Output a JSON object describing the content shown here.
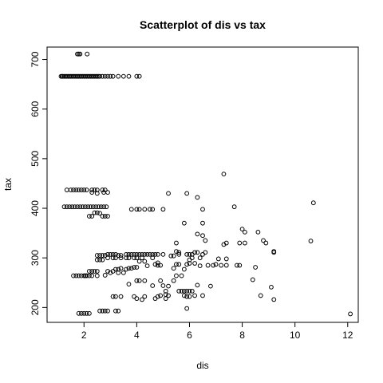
{
  "chart_data": {
    "type": "scatter",
    "title": "Scatterplot of dis vs tax",
    "xlabel": "dis",
    "ylabel": "tax",
    "xlim": [
      0.6,
      12.4
    ],
    "ylim": [
      170,
      725
    ],
    "xticks": [
      2,
      4,
      6,
      8,
      10,
      12
    ],
    "yticks": [
      200,
      300,
      400,
      500,
      600,
      700
    ],
    "xtick_labels": [
      "2",
      "4",
      "6",
      "8",
      "10",
      "12"
    ],
    "ytick_labels": [
      "200",
      "300",
      "400",
      "500",
      "600",
      "700"
    ],
    "grid": false,
    "legend": "none",
    "marker": "open-circle",
    "point_color": "#000000",
    "series": [
      {
        "points": [
          [
            1.13,
            666
          ],
          [
            1.17,
            666
          ],
          [
            1.2,
            666
          ],
          [
            1.25,
            666
          ],
          [
            1.3,
            666
          ],
          [
            1.35,
            666
          ],
          [
            1.4,
            666
          ],
          [
            1.45,
            666
          ],
          [
            1.5,
            666
          ],
          [
            1.55,
            666
          ],
          [
            1.6,
            666
          ],
          [
            1.65,
            666
          ],
          [
            1.7,
            666
          ],
          [
            1.75,
            666
          ],
          [
            1.8,
            666
          ],
          [
            1.85,
            666
          ],
          [
            1.9,
            666
          ],
          [
            1.95,
            666
          ],
          [
            2.0,
            666
          ],
          [
            2.05,
            666
          ],
          [
            2.1,
            666
          ],
          [
            2.15,
            666
          ],
          [
            2.2,
            666
          ],
          [
            2.25,
            666
          ],
          [
            2.3,
            666
          ],
          [
            2.35,
            666
          ],
          [
            2.4,
            666
          ],
          [
            2.45,
            666
          ],
          [
            2.5,
            666
          ],
          [
            2.55,
            666
          ],
          [
            2.6,
            666
          ],
          [
            2.7,
            666
          ],
          [
            2.8,
            666
          ],
          [
            2.9,
            666
          ],
          [
            3.0,
            666
          ],
          [
            3.1,
            666
          ],
          [
            3.3,
            666
          ],
          [
            3.5,
            666
          ],
          [
            3.7,
            666
          ],
          [
            4.0,
            666
          ],
          [
            4.1,
            666
          ],
          [
            1.75,
            711
          ],
          [
            1.8,
            711
          ],
          [
            1.85,
            711
          ],
          [
            2.12,
            711
          ],
          [
            1.35,
            437
          ],
          [
            1.5,
            437
          ],
          [
            1.6,
            437
          ],
          [
            1.7,
            437
          ],
          [
            1.8,
            437
          ],
          [
            1.9,
            437
          ],
          [
            2.0,
            437
          ],
          [
            2.1,
            437
          ],
          [
            2.3,
            437
          ],
          [
            2.4,
            437
          ],
          [
            2.5,
            437
          ],
          [
            2.7,
            437
          ],
          [
            2.8,
            437
          ],
          [
            2.3,
            432
          ],
          [
            2.5,
            430
          ],
          [
            2.75,
            432
          ],
          [
            2.9,
            432
          ],
          [
            1.25,
            403
          ],
          [
            1.35,
            403
          ],
          [
            1.45,
            403
          ],
          [
            1.55,
            403
          ],
          [
            1.65,
            403
          ],
          [
            1.75,
            403
          ],
          [
            1.85,
            403
          ],
          [
            1.95,
            403
          ],
          [
            2.05,
            403
          ],
          [
            2.15,
            403
          ],
          [
            2.25,
            403
          ],
          [
            2.35,
            403
          ],
          [
            2.45,
            403
          ],
          [
            2.55,
            403
          ],
          [
            2.65,
            403
          ],
          [
            2.75,
            403
          ],
          [
            2.85,
            403
          ],
          [
            2.4,
            391
          ],
          [
            2.5,
            391
          ],
          [
            2.6,
            390
          ],
          [
            2.2,
            384
          ],
          [
            2.3,
            384
          ],
          [
            2.7,
            384
          ],
          [
            2.8,
            384
          ],
          [
            2.9,
            384
          ],
          [
            3.8,
            398
          ],
          [
            4.0,
            398
          ],
          [
            4.1,
            398
          ],
          [
            4.3,
            398
          ],
          [
            4.5,
            398
          ],
          [
            4.6,
            398
          ],
          [
            5.0,
            398
          ],
          [
            5.2,
            430
          ],
          [
            5.9,
            430
          ],
          [
            6.3,
            422
          ],
          [
            6.5,
            398
          ],
          [
            6.5,
            370
          ],
          [
            5.8,
            370
          ],
          [
            6.3,
            348
          ],
          [
            6.5,
            345
          ],
          [
            6.6,
            335
          ],
          [
            7.3,
            469
          ],
          [
            7.7,
            403
          ],
          [
            8.0,
            358
          ],
          [
            8.1,
            352
          ],
          [
            8.6,
            352
          ],
          [
            8.8,
            335
          ],
          [
            8.9,
            330
          ],
          [
            7.9,
            330
          ],
          [
            8.1,
            330
          ],
          [
            7.3,
            327
          ],
          [
            7.4,
            330
          ],
          [
            9.2,
            313
          ],
          [
            9.2,
            311
          ],
          [
            10.6,
            334
          ],
          [
            10.7,
            411
          ],
          [
            2.5,
            305
          ],
          [
            2.6,
            305
          ],
          [
            2.7,
            305
          ],
          [
            2.8,
            305
          ],
          [
            2.9,
            307
          ],
          [
            3.0,
            307
          ],
          [
            3.1,
            307
          ],
          [
            3.2,
            307
          ],
          [
            3.3,
            305
          ],
          [
            3.4,
            305
          ],
          [
            3.6,
            307
          ],
          [
            3.7,
            307
          ],
          [
            3.8,
            307
          ],
          [
            3.9,
            307
          ],
          [
            4.0,
            307
          ],
          [
            4.1,
            307
          ],
          [
            4.2,
            307
          ],
          [
            4.3,
            307
          ],
          [
            4.4,
            307
          ],
          [
            4.5,
            307
          ],
          [
            4.6,
            307
          ],
          [
            4.7,
            307
          ],
          [
            4.8,
            307
          ],
          [
            5.0,
            307
          ],
          [
            2.5,
            296
          ],
          [
            2.6,
            296
          ],
          [
            2.7,
            296
          ],
          [
            2.9,
            300
          ],
          [
            3.1,
            300
          ],
          [
            3.2,
            300
          ],
          [
            3.4,
            300
          ],
          [
            3.6,
            300
          ],
          [
            3.7,
            300
          ],
          [
            3.9,
            300
          ],
          [
            4.0,
            300
          ],
          [
            4.2,
            300
          ],
          [
            4.6,
            300
          ],
          [
            4.1,
            293
          ],
          [
            4.3,
            293
          ],
          [
            4.7,
            287
          ],
          [
            4.8,
            285
          ],
          [
            4.9,
            285
          ],
          [
            1.6,
            264
          ],
          [
            1.7,
            264
          ],
          [
            1.8,
            264
          ],
          [
            1.9,
            264
          ],
          [
            2.0,
            264
          ],
          [
            2.05,
            264
          ],
          [
            2.1,
            264
          ],
          [
            2.2,
            264
          ],
          [
            2.3,
            264
          ],
          [
            2.5,
            264
          ],
          [
            2.2,
            273
          ],
          [
            2.3,
            273
          ],
          [
            2.4,
            273
          ],
          [
            2.5,
            273
          ],
          [
            2.9,
            273
          ],
          [
            3.1,
            273
          ],
          [
            3.2,
            277
          ],
          [
            3.3,
            277
          ],
          [
            3.4,
            279
          ],
          [
            3.5,
            270
          ],
          [
            3.6,
            277
          ],
          [
            3.7,
            279
          ],
          [
            3.8,
            279
          ],
          [
            3.9,
            281
          ],
          [
            4.0,
            281
          ],
          [
            4.4,
            284
          ],
          [
            4.8,
            290
          ],
          [
            2.8,
            265
          ],
          [
            3.0,
            270
          ],
          [
            3.3,
            270
          ],
          [
            3.7,
            247
          ],
          [
            4.0,
            254
          ],
          [
            4.1,
            254
          ],
          [
            4.3,
            254
          ],
          [
            4.6,
            244
          ],
          [
            4.9,
            254
          ],
          [
            5.0,
            244
          ],
          [
            1.8,
            188
          ],
          [
            1.9,
            188
          ],
          [
            2.0,
            188
          ],
          [
            2.1,
            188
          ],
          [
            2.2,
            188
          ],
          [
            2.6,
            193
          ],
          [
            2.7,
            193
          ],
          [
            2.8,
            193
          ],
          [
            2.9,
            193
          ],
          [
            3.2,
            193
          ],
          [
            3.3,
            193
          ],
          [
            3.1,
            222
          ],
          [
            3.2,
            222
          ],
          [
            3.4,
            222
          ],
          [
            3.9,
            222
          ],
          [
            4.0,
            218
          ],
          [
            4.2,
            216
          ],
          [
            4.3,
            222
          ],
          [
            4.7,
            218
          ],
          [
            4.8,
            222
          ],
          [
            4.9,
            224
          ],
          [
            5.1,
            218
          ],
          [
            5.2,
            224
          ],
          [
            5.1,
            233
          ],
          [
            5.2,
            243
          ],
          [
            5.1,
            226
          ],
          [
            5.3,
            304
          ],
          [
            5.4,
            304
          ],
          [
            5.5,
            313
          ],
          [
            5.5,
            330
          ],
          [
            5.6,
            307
          ],
          [
            5.6,
            311
          ],
          [
            5.9,
            307
          ],
          [
            6.0,
            307
          ],
          [
            6.1,
            307
          ],
          [
            6.2,
            311
          ],
          [
            6.3,
            311
          ],
          [
            6.0,
            296
          ],
          [
            6.1,
            300
          ],
          [
            6.4,
            300
          ],
          [
            6.5,
            307
          ],
          [
            6.6,
            311
          ],
          [
            5.5,
            287
          ],
          [
            5.6,
            287
          ],
          [
            5.4,
            279
          ],
          [
            5.8,
            277
          ],
          [
            5.9,
            287
          ],
          [
            6.0,
            289
          ],
          [
            6.2,
            289
          ],
          [
            6.4,
            284
          ],
          [
            6.7,
            285
          ],
          [
            6.9,
            285
          ],
          [
            7.0,
            287
          ],
          [
            7.2,
            285
          ],
          [
            7.4,
            285
          ],
          [
            7.4,
            298
          ],
          [
            7.1,
            298
          ],
          [
            7.8,
            285
          ],
          [
            7.9,
            285
          ],
          [
            8.5,
            281
          ],
          [
            8.4,
            256
          ],
          [
            8.7,
            224
          ],
          [
            9.1,
            241
          ],
          [
            9.2,
            216
          ],
          [
            5.4,
            254
          ],
          [
            5.5,
            264
          ],
          [
            5.6,
            233
          ],
          [
            5.7,
            233
          ],
          [
            5.8,
            233
          ],
          [
            5.9,
            233
          ],
          [
            6.0,
            233
          ],
          [
            6.1,
            233
          ],
          [
            5.9,
            222
          ],
          [
            6.0,
            222
          ],
          [
            5.7,
            264
          ],
          [
            5.8,
            224
          ],
          [
            5.9,
            198
          ],
          [
            6.2,
            224
          ],
          [
            6.3,
            245
          ],
          [
            6.5,
            224
          ],
          [
            6.8,
            243
          ],
          [
            12.1,
            187
          ]
        ]
      }
    ]
  }
}
